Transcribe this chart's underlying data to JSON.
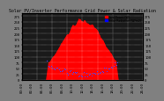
{
  "title": "Solar PV/Inverter Performance Grid Power & Solar Radiation",
  "title_fontsize": 3.5,
  "bg_color": "#808080",
  "plot_bg_color": "#1a1a1a",
  "area_color": "#ff0000",
  "dot_color": "#4444ff",
  "grid_color": "#ffffff",
  "legend_items": [
    "Grid Power (W)",
    "Solar Radiation (W/m2)"
  ],
  "legend_colors": [
    "#ff0000",
    "#0000ff"
  ],
  "xlabel_fontsize": 2.8,
  "ylabel_fontsize": 2.8,
  "num_points": 144,
  "x_tick_labels": [
    "00:00",
    "02:00",
    "04:00",
    "06:00",
    "08:00",
    "10:00",
    "12:00",
    "14:00",
    "16:00",
    "18:00",
    "20:00",
    "22:00",
    "24:00"
  ],
  "y_tick_labels_left": [
    "0",
    "25",
    "50",
    "75",
    "100",
    "125",
    "150",
    "175",
    "200",
    "225",
    "250",
    "275"
  ],
  "y_tick_labels_right": [
    "0",
    "25",
    "50",
    "75",
    "100",
    "125",
    "150",
    "175",
    "200",
    "225",
    "250",
    "275"
  ]
}
